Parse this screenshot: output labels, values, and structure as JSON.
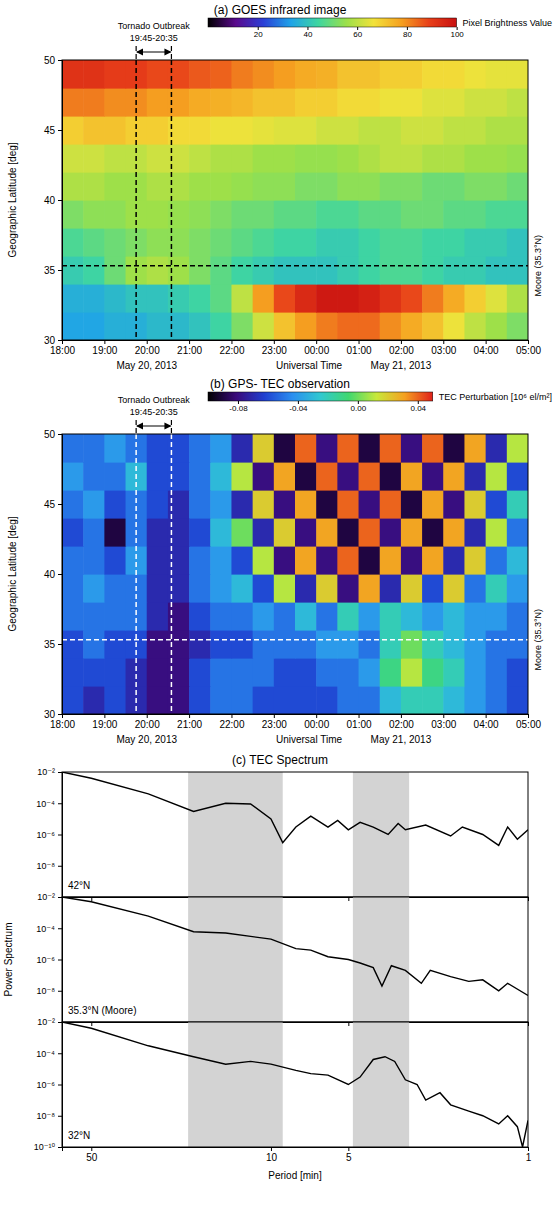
{
  "chart_data": [
    {
      "type": "heatmap",
      "title": "(a) GOES infrared image",
      "xlabel": "Universal Time",
      "ylabel": "Geographic Latitude [deg]",
      "x": [
        18.25,
        18.75,
        19.25,
        19.75,
        20.25,
        20.75,
        21.25,
        21.75,
        22.25,
        22.75,
        23.25,
        23.75,
        24.25,
        24.75,
        25.25,
        25.75,
        26.25,
        26.75,
        27.25,
        27.75,
        28.25,
        28.75
      ],
      "y": [
        31,
        33,
        35,
        37,
        39,
        41,
        43,
        45,
        47,
        49
      ],
      "z": [
        [
          34,
          34,
          36,
          36,
          38,
          38,
          40,
          44,
          52,
          62,
          72,
          78,
          82,
          84,
          84,
          80,
          76,
          72,
          66,
          60,
          56,
          52
        ],
        [
          36,
          36,
          38,
          40,
          40,
          42,
          44,
          48,
          60,
          78,
          88,
          94,
          98,
          98,
          96,
          92,
          88,
          82,
          76,
          70,
          64,
          58
        ],
        [
          42,
          44,
          50,
          56,
          58,
          56,
          52,
          48,
          44,
          42,
          40,
          40,
          40,
          42,
          44,
          46,
          46,
          44,
          42,
          42,
          40,
          40
        ],
        [
          46,
          48,
          50,
          52,
          54,
          54,
          52,
          50,
          48,
          46,
          44,
          44,
          42,
          42,
          44,
          46,
          46,
          44,
          44,
          42,
          42,
          40
        ],
        [
          52,
          54,
          54,
          56,
          56,
          55,
          54,
          52,
          50,
          50,
          48,
          48,
          46,
          46,
          48,
          48,
          50,
          50,
          48,
          48,
          46,
          46
        ],
        [
          58,
          58,
          56,
          56,
          58,
          58,
          56,
          56,
          55,
          54,
          54,
          52,
          52,
          54,
          54,
          52,
          52,
          50,
          50,
          52,
          52,
          50
        ],
        [
          62,
          62,
          60,
          60,
          62,
          62,
          60,
          58,
          58,
          56,
          56,
          55,
          55,
          56,
          58,
          60,
          60,
          58,
          58,
          56,
          56,
          55
        ],
        [
          70,
          72,
          72,
          70,
          70,
          68,
          68,
          66,
          66,
          65,
          64,
          64,
          62,
          62,
          60,
          60,
          62,
          62,
          60,
          60,
          58,
          58
        ],
        [
          82,
          82,
          80,
          80,
          78,
          78,
          76,
          75,
          74,
          72,
          72,
          70,
          70,
          68,
          68,
          66,
          66,
          64,
          64,
          62,
          62,
          60
        ],
        [
          92,
          92,
          90,
          90,
          88,
          88,
          86,
          85,
          82,
          80,
          78,
          76,
          75,
          72,
          72,
          70,
          70,
          68,
          68,
          66,
          65,
          65
        ]
      ],
      "xlim": [
        18,
        29
      ],
      "xticks": [
        {
          "value": 18,
          "label": "18:00"
        },
        {
          "value": 19,
          "label": "19:00"
        },
        {
          "value": 20,
          "label": "20:00"
        },
        {
          "value": 21,
          "label": "21:00"
        },
        {
          "value": 22,
          "label": "22:00"
        },
        {
          "value": 23,
          "label": "23:00"
        },
        {
          "value": 24,
          "label": "00:00"
        },
        {
          "value": 25,
          "label": "01:00"
        },
        {
          "value": 26,
          "label": "02:00"
        },
        {
          "value": 27,
          "label": "03:00"
        },
        {
          "value": 28,
          "label": "04:00"
        },
        {
          "value": 29,
          "label": "05:00"
        }
      ],
      "ylim": [
        30,
        50
      ],
      "yticks": [
        30,
        35,
        40,
        45,
        50
      ],
      "date_labels": [
        {
          "x": 20,
          "label": "May 20, 2013"
        },
        {
          "x": 26,
          "label": "May 21, 2013"
        }
      ],
      "event": {
        "label": "Tornado Outbreak",
        "time_label": "19:45-20:35",
        "start": 19.75,
        "end": 20.583,
        "color": "#000000",
        "line_style": "dashed"
      },
      "reference_line": {
        "y": 35.3,
        "label": "Moore (35.3°N)",
        "color": "#000000",
        "line_style": "dashed"
      },
      "colorbar": {
        "label": "Pixel Brightness Value",
        "zlim": [
          0,
          100
        ],
        "zticks": [
          20,
          40,
          60,
          80,
          100
        ],
        "colors": [
          "#000000",
          "#5a0a8c",
          "#2b3fd6",
          "#1fa3e8",
          "#3fd6a0",
          "#9be04a",
          "#f2e23a",
          "#f5a020",
          "#e8401a",
          "#c81010"
        ]
      }
    },
    {
      "type": "heatmap",
      "title": "(b) GPS- TEC observation",
      "xlabel": "Universal Time",
      "ylabel": "Geographic Latitude [deg]",
      "x": [
        18.25,
        18.75,
        19.25,
        19.75,
        20.25,
        20.75,
        21.25,
        21.75,
        22.25,
        22.75,
        23.25,
        23.75,
        24.25,
        24.75,
        25.25,
        25.75,
        26.25,
        26.75,
        27.25,
        27.75,
        28.25,
        28.75
      ],
      "y": [
        31,
        33,
        35,
        37,
        39,
        41,
        43,
        45,
        47,
        49
      ],
      "z": [
        [
          -0.06,
          -0.07,
          -0.06,
          -0.07,
          -0.08,
          -0.08,
          -0.06,
          -0.05,
          -0.05,
          -0.06,
          -0.06,
          -0.06,
          -0.06,
          -0.05,
          -0.05,
          -0.03,
          -0.02,
          -0.02,
          -0.03,
          -0.04,
          -0.05,
          -0.06
        ],
        [
          -0.06,
          -0.06,
          -0.06,
          -0.07,
          -0.08,
          -0.08,
          -0.06,
          -0.05,
          -0.05,
          -0.05,
          -0.06,
          -0.06,
          -0.05,
          -0.05,
          -0.04,
          -0.01,
          0.01,
          -0.01,
          -0.02,
          -0.04,
          -0.05,
          -0.06
        ],
        [
          -0.06,
          -0.05,
          -0.06,
          -0.06,
          -0.08,
          -0.08,
          -0.07,
          -0.06,
          -0.06,
          -0.05,
          -0.05,
          -0.05,
          -0.04,
          -0.04,
          -0.05,
          -0.02,
          0,
          -0.02,
          -0.03,
          -0.04,
          -0.05,
          -0.05
        ],
        [
          -0.05,
          -0.05,
          -0.05,
          -0.05,
          -0.07,
          -0.08,
          -0.06,
          -0.05,
          -0.05,
          -0.04,
          -0.05,
          -0.03,
          -0.05,
          -0.02,
          -0.04,
          -0.02,
          -0.03,
          -0.04,
          -0.03,
          -0.04,
          -0.04,
          -0.05
        ],
        [
          -0.05,
          -0.04,
          -0.05,
          -0.05,
          -0.07,
          -0.07,
          -0.05,
          -0.04,
          -0.03,
          -0.06,
          0.01,
          -0.07,
          0.02,
          -0.08,
          0.03,
          -0.07,
          0.02,
          -0.06,
          0.02,
          -0.05,
          -0.02,
          -0.04
        ],
        [
          -0.05,
          -0.05,
          -0.06,
          -0.04,
          -0.07,
          -0.07,
          -0.05,
          -0.04,
          -0.06,
          0.01,
          -0.08,
          0.03,
          -0.08,
          0.04,
          -0.09,
          0.03,
          -0.08,
          0.03,
          -0.07,
          0.02,
          -0.05,
          -0.03
        ],
        [
          -0.06,
          -0.05,
          -0.09,
          -0.05,
          -0.07,
          -0.07,
          -0.06,
          -0.03,
          0,
          -0.07,
          0.02,
          -0.08,
          0.03,
          -0.09,
          0.04,
          -0.08,
          0.03,
          -0.09,
          0.03,
          -0.07,
          0.01,
          -0.05
        ],
        [
          -0.05,
          -0.04,
          -0.06,
          -0.05,
          -0.06,
          -0.07,
          -0.05,
          -0.04,
          -0.07,
          0.02,
          -0.08,
          0.03,
          -0.09,
          0.04,
          -0.08,
          0.04,
          -0.09,
          0.03,
          -0.08,
          0.02,
          -0.06,
          -0.02
        ],
        [
          -0.04,
          -0.05,
          -0.05,
          -0.03,
          -0.06,
          -0.06,
          -0.05,
          -0.03,
          0.01,
          -0.08,
          0.03,
          -0.09,
          0.04,
          -0.08,
          0.04,
          -0.09,
          0.03,
          -0.08,
          0.03,
          -0.07,
          0.01,
          -0.06
        ],
        [
          -0.05,
          -0.05,
          -0.04,
          -0.05,
          -0.06,
          -0.06,
          -0.05,
          -0.04,
          -0.07,
          0.02,
          -0.09,
          0.04,
          -0.08,
          0.04,
          -0.09,
          0.04,
          -0.08,
          0.04,
          -0.09,
          0.03,
          -0.07,
          0.01
        ]
      ],
      "xlim": [
        18,
        29
      ],
      "xticks": [
        {
          "value": 18,
          "label": "18:00"
        },
        {
          "value": 19,
          "label": "19:00"
        },
        {
          "value": 20,
          "label": "20:00"
        },
        {
          "value": 21,
          "label": "21:00"
        },
        {
          "value": 22,
          "label": "22:00"
        },
        {
          "value": 23,
          "label": "23:00"
        },
        {
          "value": 24,
          "label": "00:00"
        },
        {
          "value": 25,
          "label": "01:00"
        },
        {
          "value": 26,
          "label": "02:00"
        },
        {
          "value": 27,
          "label": "03:00"
        },
        {
          "value": 28,
          "label": "04:00"
        },
        {
          "value": 29,
          "label": "05:00"
        }
      ],
      "ylim": [
        30,
        50
      ],
      "yticks": [
        30,
        35,
        40,
        45,
        50
      ],
      "date_labels": [
        {
          "x": 20,
          "label": "May 20, 2013"
        },
        {
          "x": 26,
          "label": "May 21, 2013"
        }
      ],
      "event": {
        "label": "Tornado Outbreak",
        "time_label": "19:45-20:35",
        "start": 19.75,
        "end": 20.583,
        "color": "#ffffff",
        "line_style": "dashed"
      },
      "reference_line": {
        "y": 35.3,
        "label": "Moore (35.3°N)",
        "color": "#ffffff",
        "line_style": "dashed"
      },
      "colorbar": {
        "label": "TEC Perturbation [10⁶ el/m²]",
        "zlim": [
          -0.1,
          0.05
        ],
        "zticks": [
          -0.08,
          -0.04,
          {
            "value": 0,
            "label": "0.00"
          },
          0.04
        ],
        "colors": [
          "#000000",
          "#3a0a7a",
          "#1f3fd0",
          "#2a8ef0",
          "#30c8d0",
          "#40d870",
          "#c8e83a",
          "#f5a020",
          "#e0201a"
        ]
      }
    },
    {
      "type": "line",
      "title": "(c) TEC Spectrum",
      "xlabel": "Period [min]",
      "ylabel": "Power Spectrum",
      "log": true,
      "xlim": [
        65,
        1
      ],
      "xticks": [
        50,
        10,
        5,
        1
      ],
      "ylim": [
        1e-10,
        0.01
      ],
      "shaded_periods": [
        [
          21,
          9
        ],
        [
          4.8,
          2.9
        ]
      ],
      "series": [
        {
          "name": "42°N",
          "color": "#000000",
          "yticks": [
            {
              "value": 0.01,
              "label": "10⁻²"
            },
            {
              "value": 0.0001,
              "label": "10⁻⁴"
            },
            {
              "value": 1e-06,
              "label": "10⁻⁶"
            },
            {
              "value": 1e-08,
              "label": "10⁻⁸"
            }
          ],
          "x": [
            65,
            50,
            30,
            20,
            15,
            12,
            10,
            9,
            8,
            7,
            6,
            5.5,
            5,
            4.5,
            4,
            3.5,
            3.2,
            3,
            2.5,
            2,
            1.8,
            1.5,
            1.3,
            1.2,
            1.1,
            1
          ],
          "values": [
            0.01,
            0.004,
            0.0004,
            3e-05,
            0.0001,
            9e-05,
            1e-05,
            3e-07,
            3e-06,
            1.5e-05,
            3e-06,
            8e-06,
            2e-06,
            6e-06,
            3e-06,
            1e-06,
            5e-06,
            2e-06,
            4e-06,
            8e-07,
            3e-06,
            1e-06,
            2e-07,
            3e-06,
            5e-07,
            2e-06
          ]
        },
        {
          "name": "35.3°N (Moore)",
          "color": "#000000",
          "yticks": [
            {
              "value": 0.01,
              "label": "10⁻²"
            },
            {
              "value": 0.0001,
              "label": "10⁻⁴"
            },
            {
              "value": 1e-06,
              "label": "10⁻⁶"
            },
            {
              "value": 1e-08,
              "label": "10⁻⁸"
            }
          ],
          "x": [
            65,
            50,
            30,
            20,
            15,
            12,
            10,
            8,
            7,
            6,
            5,
            4.5,
            4,
            3.7,
            3.4,
            3,
            2.6,
            2.4,
            2,
            1.7,
            1.5,
            1.3,
            1.2,
            1
          ],
          "values": [
            0.01,
            0.005,
            0.0006,
            6e-05,
            5e-05,
            3e-05,
            2e-05,
            5e-06,
            4e-06,
            1.5e-06,
            1e-06,
            6e-07,
            3e-07,
            2e-08,
            4e-07,
            2e-07,
            3e-08,
            2e-07,
            8e-08,
            4e-08,
            5e-08,
            1e-08,
            3e-08,
            5e-09
          ]
        },
        {
          "name": "32°N",
          "color": "#000000",
          "yticks": [
            {
              "value": 0.01,
              "label": "10⁻²"
            },
            {
              "value": 0.0001,
              "label": "10⁻⁴"
            },
            {
              "value": 1e-06,
              "label": "10⁻⁶"
            },
            {
              "value": 1e-08,
              "label": "10⁻⁸"
            },
            {
              "value": 1e-10,
              "label": "10⁻¹⁰"
            }
          ],
          "x": [
            65,
            50,
            30,
            20,
            15,
            12,
            10,
            8,
            7,
            6,
            5,
            4.5,
            4,
            3.6,
            3.3,
            3,
            2.7,
            2.5,
            2.2,
            2,
            1.7,
            1.5,
            1.3,
            1.2,
            1.1,
            1.05,
            1
          ],
          "values": [
            0.01,
            0.004,
            0.0003,
            6e-05,
            2e-05,
            3e-05,
            2e-05,
            8e-06,
            5e-06,
            4e-06,
            1e-06,
            3e-06,
            4e-05,
            6e-05,
            3e-05,
            2e-06,
            1e-06,
            1e-07,
            3e-07,
            5e-08,
            2e-08,
            1e-08,
            3e-09,
            1e-08,
            2e-09,
            1e-10,
            5e-09
          ]
        }
      ]
    }
  ]
}
